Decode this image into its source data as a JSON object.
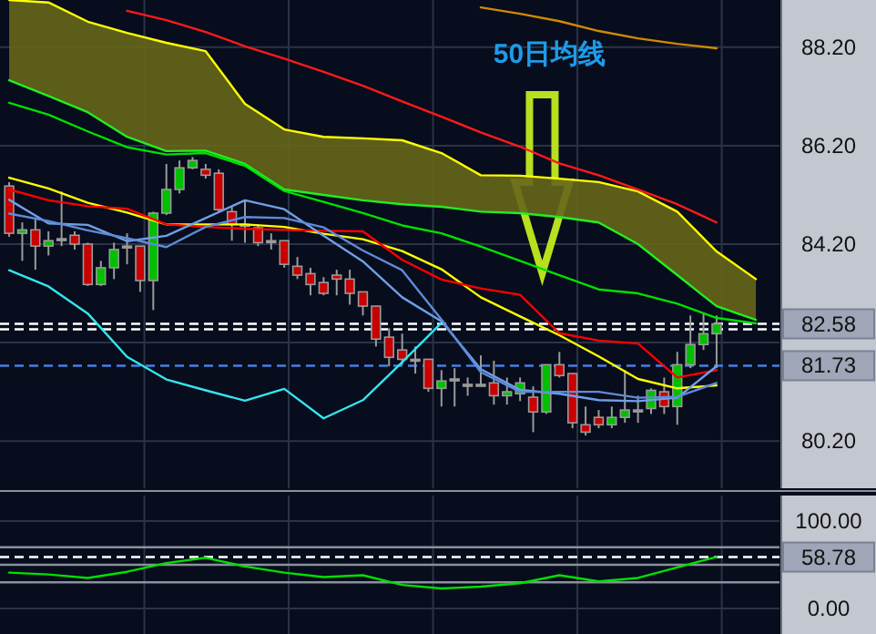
{
  "chart_data": [
    {
      "type": "candlestick",
      "categories": [
        null,
        null,
        null,
        null,
        null,
        null,
        null,
        null,
        null,
        null,
        null,
        null,
        null,
        null,
        null,
        null,
        null,
        null,
        null,
        null,
        null,
        null,
        null,
        null,
        null,
        null,
        null,
        null,
        null,
        null,
        null,
        null,
        null,
        null,
        null,
        null,
        null,
        null,
        null,
        null,
        null,
        null,
        null,
        null,
        null,
        null,
        null,
        null,
        null,
        null,
        null,
        null,
        null,
        null,
        null
      ],
      "ohlc": [
        [
          85.38,
          85.46,
          84.35,
          84.42
        ],
        [
          84.42,
          84.64,
          83.86,
          84.49
        ],
        [
          84.49,
          84.72,
          83.68,
          84.16
        ],
        [
          84.16,
          84.46,
          83.97,
          84.27
        ],
        [
          84.31,
          85.27,
          84.16,
          84.31
        ],
        [
          84.38,
          84.46,
          84.09,
          84.2
        ],
        [
          84.2,
          84.23,
          83.35,
          83.38
        ],
        [
          83.38,
          83.86,
          83.35,
          83.72
        ],
        [
          83.72,
          84.23,
          83.49,
          84.09
        ],
        [
          84.16,
          84.42,
          83.79,
          84.16
        ],
        [
          84.16,
          84.16,
          83.23,
          83.46
        ],
        [
          83.46,
          84.86,
          82.86,
          84.83
        ],
        [
          84.83,
          85.83,
          84.79,
          85.31
        ],
        [
          85.31,
          85.9,
          85.23,
          85.75
        ],
        [
          85.75,
          85.97,
          85.72,
          85.9
        ],
        [
          85.72,
          85.83,
          85.53,
          85.6
        ],
        [
          85.64,
          85.72,
          84.86,
          84.9
        ],
        [
          84.86,
          84.97,
          84.27,
          84.6
        ],
        [
          84.6,
          85.09,
          84.23,
          84.6
        ],
        [
          84.53,
          84.6,
          84.16,
          84.23
        ],
        [
          84.27,
          84.42,
          84.09,
          84.27
        ],
        [
          84.27,
          84.27,
          83.72,
          83.79
        ],
        [
          83.75,
          83.94,
          83.49,
          83.57
        ],
        [
          83.6,
          83.72,
          83.16,
          83.38
        ],
        [
          83.42,
          83.53,
          83.16,
          83.2
        ],
        [
          83.57,
          83.68,
          83.16,
          83.49
        ],
        [
          83.49,
          83.68,
          82.97,
          83.2
        ],
        [
          83.23,
          83.23,
          82.75,
          82.94
        ],
        [
          82.94,
          82.94,
          82.12,
          82.27
        ],
        [
          82.31,
          82.49,
          81.72,
          81.9
        ],
        [
          82.05,
          82.38,
          81.75,
          81.86
        ],
        [
          81.86,
          82.12,
          81.57,
          81.86
        ],
        [
          81.86,
          81.86,
          81.2,
          81.27
        ],
        [
          81.27,
          81.64,
          80.9,
          81.42
        ],
        [
          81.46,
          81.68,
          80.9,
          81.46
        ],
        [
          81.35,
          81.49,
          81.12,
          81.35
        ],
        [
          81.35,
          81.94,
          81.31,
          81.35
        ],
        [
          81.38,
          81.83,
          80.94,
          81.12
        ],
        [
          81.12,
          81.49,
          80.94,
          81.2
        ],
        [
          81.16,
          81.49,
          81.01,
          81.38
        ],
        [
          81.09,
          81.31,
          80.38,
          80.79
        ],
        [
          80.79,
          81.75,
          80.75,
          81.75
        ],
        [
          81.75,
          82.01,
          81.49,
          81.53
        ],
        [
          81.57,
          81.57,
          80.46,
          80.57
        ],
        [
          80.53,
          80.9,
          80.31,
          80.38
        ],
        [
          80.68,
          80.83,
          80.46,
          80.53
        ],
        [
          80.53,
          80.9,
          80.46,
          80.68
        ],
        [
          80.68,
          81.64,
          80.57,
          80.83
        ],
        [
          80.83,
          81.12,
          80.57,
          80.83
        ],
        [
          80.86,
          81.27,
          80.75,
          81.23
        ],
        [
          81.2,
          81.49,
          80.75,
          80.9
        ],
        [
          80.9,
          82.01,
          80.53,
          81.75
        ],
        [
          81.75,
          82.75,
          81.68,
          82.16
        ],
        [
          82.16,
          82.79,
          82.05,
          82.38
        ],
        [
          82.38,
          82.75,
          81.68,
          82.58
        ]
      ],
      "ylim": [
        79.24,
        89.16
      ],
      "yticks": [
        {
          "value": 80.2,
          "label": "80.20"
        },
        {
          "value": 82.2,
          "label": null
        },
        {
          "value": 84.2,
          "label": "84.20"
        },
        {
          "value": 86.2,
          "label": "86.20"
        },
        {
          "value": 88.2,
          "label": "88.20"
        }
      ],
      "tick_labels": "y",
      "grid": true,
      "ref_lines": [
        {
          "axis": "y",
          "value": 82.58,
          "label": "82.58",
          "color": "#ffffff",
          "line_style": "dashed"
        },
        {
          "axis": "y",
          "value": 82.47,
          "label": null,
          "color": "#ffffff",
          "line_style": "dashed"
        },
        {
          "axis": "y",
          "value": 81.73,
          "label": "81.73",
          "color": "#4a7fe0",
          "line_style": "dashed"
        }
      ],
      "annotations": [
        "50日均线"
      ]
    },
    {
      "type": "line",
      "categories": [
        null,
        null,
        null,
        null,
        null,
        null,
        null,
        null,
        null,
        null,
        null,
        null,
        null,
        null,
        null,
        null,
        null,
        null,
        null,
        null
      ],
      "series": [
        {
          "type": "line",
          "color": "#ffff00",
          "values": [
            89.16,
            89.11,
            88.72,
            88.49,
            88.29,
            88.12,
            87.05,
            86.53,
            86.38,
            86.35,
            86.31,
            86.05,
            85.6,
            85.59,
            85.53,
            85.46,
            85.27,
            84.86,
            84.05,
            83.49
          ],
          "lower": [
            87.53,
            87.21,
            86.88,
            86.38,
            86.09,
            86.1,
            85.83,
            85.31,
            85.2,
            85.09,
            85.01,
            84.96,
            84.86,
            84.83,
            84.75,
            84.64,
            84.2,
            83.57,
            82.94,
            82.66
          ],
          "upper": [
            89.16,
            89.11,
            88.72,
            88.49,
            88.29,
            88.12,
            87.05,
            86.53,
            86.38,
            86.35,
            86.31,
            86.05,
            85.6,
            85.59,
            85.53,
            85.46,
            85.27,
            84.86,
            84.05,
            83.49
          ]
        }
      ],
      "ylim": [
        79.24,
        89.16
      ],
      "tick_labels": false
    },
    {
      "type": "line",
      "categories": [
        null,
        null,
        null,
        null,
        null,
        null,
        null,
        null,
        null,
        null,
        null,
        null,
        null,
        null,
        null,
        null,
        null,
        null,
        null,
        null
      ],
      "series": [
        {
          "color": "#00e000",
          "values": [
            87.07,
            86.83,
            86.49,
            86.17,
            86.02,
            86.05,
            85.79,
            85.28,
            85.06,
            84.83,
            84.58,
            84.42,
            84.15,
            83.86,
            83.57,
            83.28,
            83.2,
            82.99,
            82.7,
            82.59
          ]
        },
        {
          "color": "#ff1a1a",
          "values": [
            null,
            null,
            null,
            88.94,
            88.75,
            88.51,
            88.22,
            87.97,
            87.7,
            87.42,
            87.1,
            86.79,
            86.47,
            86.18,
            85.84,
            85.6,
            85.31,
            85.01,
            84.64,
            null
          ]
        },
        {
          "color": "#d08a00",
          "values": [
            null,
            null,
            null,
            null,
            null,
            null,
            null,
            null,
            null,
            null,
            null,
            null,
            89.01,
            88.88,
            88.73,
            88.53,
            88.38,
            88.27,
            88.18,
            null
          ]
        },
        {
          "color": "#ffff00",
          "values": [
            85.55,
            85.33,
            85.04,
            84.84,
            84.6,
            84.6,
            84.6,
            84.55,
            84.41,
            84.3,
            84.06,
            83.69,
            83.12,
            82.73,
            82.35,
            81.92,
            81.46,
            81.27,
            81.33,
            null
          ]
        },
        {
          "color": "#ff0000",
          "values": [
            85.31,
            85.09,
            84.97,
            84.92,
            84.6,
            84.55,
            84.51,
            84.49,
            84.47,
            84.46,
            83.88,
            83.48,
            83.3,
            83.17,
            82.39,
            82.24,
            82.18,
            81.49,
            81.64,
            null
          ]
        },
        {
          "color": "#6f9fe8",
          "values": [
            85.1,
            84.62,
            84.59,
            84.26,
            84.37,
            84.73,
            85.09,
            84.91,
            84.37,
            83.85,
            83.12,
            82.63,
            81.66,
            81.24,
            81.16,
            81.03,
            81.01,
            81.08,
            81.72,
            null
          ]
        },
        {
          "color": "#5f8ad8",
          "values": [
            84.82,
            84.67,
            84.48,
            84.32,
            84.14,
            84.55,
            84.75,
            84.73,
            84.54,
            84.07,
            83.67,
            82.67,
            81.6,
            81.2,
            81.2,
            81.2,
            81.08,
            81.1,
            81.38,
            null
          ]
        },
        {
          "color": "#33e6f0",
          "values": [
            83.67,
            83.34,
            82.79,
            81.91,
            81.45,
            81.23,
            81.02,
            81.26,
            80.66,
            81.03,
            81.8,
            82.6,
            null,
            null,
            null,
            null,
            null,
            null,
            null,
            null
          ]
        }
      ],
      "ylim": [
        79.24,
        89.16
      ],
      "tick_labels": false
    },
    {
      "type": "line",
      "categories": [
        null,
        null,
        null,
        null,
        null,
        null,
        null,
        null,
        null,
        null,
        null,
        null,
        null,
        null,
        null,
        null,
        null,
        null,
        null,
        null
      ],
      "color": "#00e000",
      "values": [
        41,
        39,
        35,
        42,
        52,
        58,
        48,
        41,
        36,
        38,
        27,
        23,
        25,
        29,
        38,
        31,
        35,
        47,
        59,
        null
      ],
      "ylim": [
        -29,
        129
      ],
      "yticks": [
        {
          "value": 0,
          "label": "0.00"
        },
        {
          "value": 100,
          "label": "100.00"
        }
      ],
      "tick_labels": "y",
      "grid": true,
      "ref_lines": [
        {
          "axis": "y",
          "value": 70,
          "label": null,
          "color": "#8a909c",
          "line_style": "solid"
        },
        {
          "axis": "y",
          "value": 50,
          "label": null,
          "color": "#8a909c",
          "line_style": "solid"
        },
        {
          "axis": "y",
          "value": 30,
          "label": null,
          "color": "#8a909c",
          "line_style": "solid"
        },
        {
          "axis": "y",
          "value": 58.78,
          "label": "58.78",
          "color": "#ffffff",
          "line_style": "dashed"
        }
      ]
    }
  ]
}
